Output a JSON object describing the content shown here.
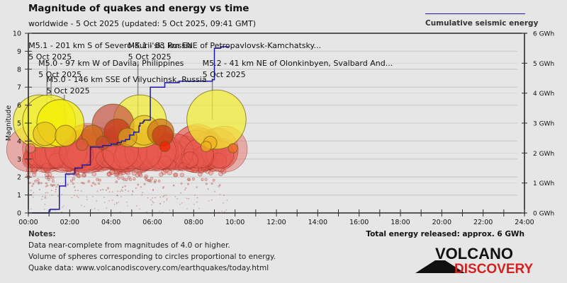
{
  "header": {
    "title": "Magnitude of quakes and energy vs time",
    "subtitle": "worldwide -  5 Oct 2025 (updated: 5 Oct 2025, 09:41 GMT)"
  },
  "legend": {
    "label": "Cumulative seismic energy",
    "color": "#1a1aa6"
  },
  "total_energy": "Total energy released: approx. 6 GWh",
  "notes": {
    "title": "Notes:",
    "lines": [
      "Data near-complete from magnitudes of 4.0 or higher.",
      "Volume of spheres corresponding to circles proportional to energy.",
      "Quake data: www.volcanodiscovery.com/earthquakes/today.html"
    ]
  },
  "logo": {
    "line1": "VOLCANO",
    "line2": "DISCOVERY",
    "line2_color": "#d42020"
  },
  "chart_data": {
    "type": "scatter",
    "title": "Magnitude of quakes and energy vs time",
    "xlabel": "",
    "ylabel": "Magnitude",
    "y2label": "Cumulative seismic energy",
    "xlim": [
      0,
      24
    ],
    "ylim": [
      0,
      10
    ],
    "y2lim": [
      0,
      6
    ],
    "x_ticks": [
      "00:00",
      "02:00",
      "04:00",
      "06:00",
      "08:00",
      "10:00",
      "12:00",
      "14:00",
      "16:00",
      "18:00",
      "20:00",
      "22:00",
      "24:00"
    ],
    "y_ticks": [
      "0",
      "1",
      "2",
      "3",
      "4",
      "5",
      "6",
      "7",
      "8",
      "9",
      "10"
    ],
    "y2_ticks": [
      "0 GWh",
      "1 GWh",
      "2 GWh",
      "3 GWh",
      "4 GWh",
      "5 GWh",
      "6 GWh"
    ],
    "grid": true,
    "annotations": [
      {
        "text": "M5.1 - 201 km S of Severo-Kuril'sk, Russia",
        "date": "5 Oct 2025",
        "hour": 0.9,
        "row": 0
      },
      {
        "text": "M5.1 - 83 km ENE of Petropavlovsk-Kamchatsky...",
        "date": "5 Oct 2025",
        "hour": 5.3,
        "row": 0
      },
      {
        "text": "M5.0 - 97 km W of Davila, Philippines",
        "date": "5 Oct 2025",
        "hour": 1.1,
        "row": 1
      },
      {
        "text": "M5.2 - 41 km NE of Olonkinbyen, Svalbard And...",
        "date": "5 Oct 2025",
        "hour": 8.9,
        "row": 1
      },
      {
        "text": "M5.0 - 146 km SSE of Vilyuchinsk, Russia",
        "date": "5 Oct 2025",
        "hour": 1.6,
        "row": 2
      }
    ],
    "large_quakes": [
      {
        "hour": 0.55,
        "mag": 5.1,
        "color": "#f2ee30"
      },
      {
        "hour": 1.0,
        "mag": 5.1,
        "color": "#f2ee30"
      },
      {
        "hour": 1.55,
        "mag": 5.0,
        "color": "#f5f000"
      },
      {
        "hour": 5.4,
        "mag": 5.1,
        "color": "#f2ee30"
      },
      {
        "hour": 9.1,
        "mag": 5.2,
        "color": "#f2ee30"
      },
      {
        "hour": 4.1,
        "mag": 4.9,
        "color": "#c8584a"
      },
      {
        "hour": 0.8,
        "mag": 4.4,
        "color": "#e8c020"
      },
      {
        "hour": 1.8,
        "mag": 4.3,
        "color": "#e8c020"
      },
      {
        "hour": 3.1,
        "mag": 4.3,
        "color": "#d07018"
      },
      {
        "hour": 4.3,
        "mag": 4.5,
        "color": "#c83a18"
      },
      {
        "hour": 4.8,
        "mag": 4.2,
        "color": "#d8a020"
      },
      {
        "hour": 5.6,
        "mag": 4.6,
        "color": "#e8c020"
      },
      {
        "hour": 6.4,
        "mag": 4.5,
        "color": "#d07018"
      },
      {
        "hour": 6.5,
        "mag": 4.3,
        "color": "#c83a18"
      },
      {
        "hour": 3.6,
        "mag": 3.9,
        "color": "#c84a28"
      },
      {
        "hour": 2.6,
        "mag": 3.8,
        "color": "#d85a38"
      },
      {
        "hour": 8.6,
        "mag": 3.7,
        "color": "#f0b020"
      },
      {
        "hour": 8.8,
        "mag": 3.9,
        "color": "#f0b020"
      },
      {
        "hour": 9.9,
        "mag": 3.6,
        "color": "#f07020"
      },
      {
        "hour": 6.6,
        "mag": 3.7,
        "color": "#f02000"
      },
      {
        "hour": 0.1,
        "mag": 3.6,
        "color": "#f08080"
      }
    ],
    "energy_series": {
      "name": "Cumulative seismic energy",
      "unit": "GWh",
      "hours": [
        0,
        0.4,
        1.0,
        1.05,
        1.45,
        1.5,
        1.75,
        1.8,
        2.2,
        2.25,
        2.6,
        3.0,
        3.3,
        3.6,
        4.0,
        4.3,
        4.5,
        4.7,
        4.9,
        5.1,
        5.35,
        5.4,
        5.55,
        5.6,
        5.9,
        6.5,
        6.6,
        7.3,
        8.9,
        9.0,
        9.3,
        9.7
      ],
      "values": [
        0,
        0,
        0.06,
        0.12,
        0.12,
        0.9,
        0.9,
        1.3,
        1.3,
        1.5,
        1.6,
        2.2,
        2.2,
        2.25,
        2.3,
        2.35,
        2.4,
        2.45,
        2.6,
        2.7,
        2.9,
        3.0,
        3.05,
        3.1,
        4.2,
        4.2,
        4.35,
        4.4,
        4.45,
        5.5,
        5.55,
        5.55
      ]
    },
    "small_quakes_note": "~hundreds of M1-M4 quakes between 00:00 and 09:45"
  }
}
